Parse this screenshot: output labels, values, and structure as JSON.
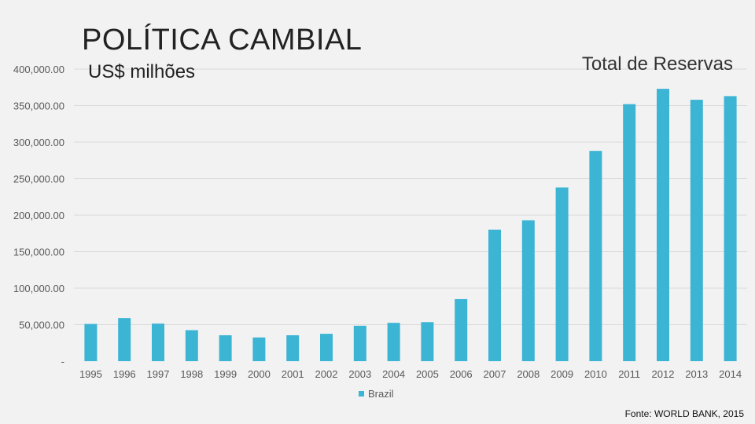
{
  "slide": {
    "title": "POLÍTICA CAMBIAL",
    "subtitle": "US$ milhões",
    "source": "Fonte: WORLD BANK, 2015"
  },
  "colors": {
    "bar": "#3cb4d4",
    "grid": "#d9d9d9",
    "background": "#f2f2f2"
  },
  "chart_data": {
    "type": "bar",
    "title": "Total de Reservas",
    "xlabel": "",
    "ylabel": "",
    "categories": [
      "1995",
      "1996",
      "1997",
      "1998",
      "1999",
      "2000",
      "2001",
      "2002",
      "2003",
      "2004",
      "2005",
      "2006",
      "2007",
      "2008",
      "2009",
      "2010",
      "2011",
      "2012",
      "2013",
      "2014"
    ],
    "series": [
      {
        "name": "Brazil",
        "values": [
          51000,
          59000,
          51500,
          42500,
          35500,
          32500,
          35500,
          37500,
          48500,
          52500,
          53500,
          85000,
          180000,
          193000,
          238000,
          288000,
          352000,
          373000,
          358000,
          363000
        ]
      }
    ],
    "ylim": [
      0,
      400000
    ],
    "yticks": [
      0,
      50000,
      100000,
      150000,
      200000,
      250000,
      300000,
      350000,
      400000
    ],
    "ytick_labels": [
      "-",
      "50,000.00",
      "100,000.00",
      "150,000.00",
      "200,000.00",
      "250,000.00",
      "300,000.00",
      "350,000.00",
      "400,000.00"
    ],
    "grid": true,
    "legend_position": "bottom"
  }
}
